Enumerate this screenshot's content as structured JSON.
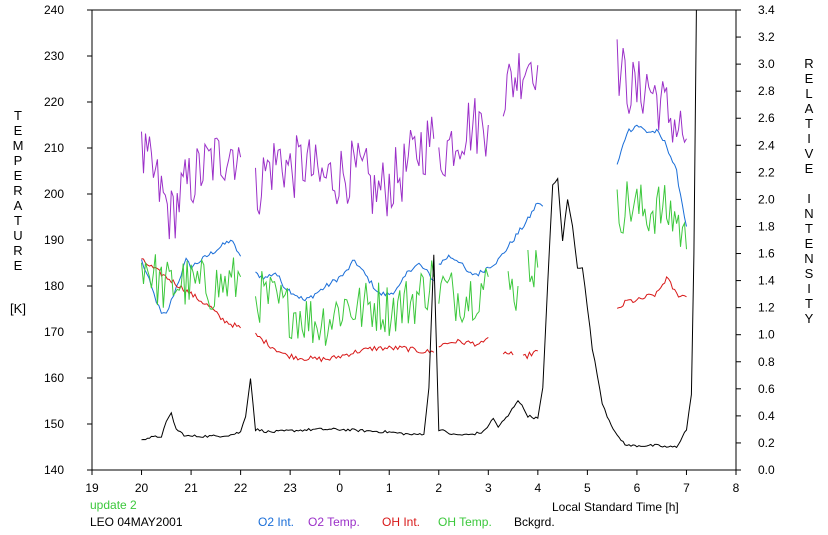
{
  "chart_data": {
    "type": "line",
    "title": "",
    "xlabel": "Local Standard Time [h]",
    "ylabel_left": "TEMPERATURE",
    "ylabel_left_unit": "[K]",
    "ylabel_right": "RELATIVE INTENSITY",
    "xlim": [
      19,
      8
    ],
    "x_ticks": [
      "19",
      "20",
      "21",
      "22",
      "23",
      "0",
      "1",
      "2",
      "3",
      "4",
      "5",
      "6",
      "7",
      "8"
    ],
    "ylim_left": [
      140,
      240
    ],
    "y_ticks_left": [
      "140",
      "150",
      "160",
      "170",
      "180",
      "190",
      "200",
      "210",
      "220",
      "230",
      "240"
    ],
    "ylim_right": [
      0.0,
      3.4
    ],
    "y_ticks_right": [
      "0.0",
      "0.2",
      "0.4",
      "0.6",
      "0.8",
      "1.0",
      "1.2",
      "1.4",
      "1.6",
      "1.8",
      "2.0",
      "2.2",
      "2.4",
      "2.6",
      "2.8",
      "3.0",
      "3.2",
      "3.4"
    ],
    "grid": false,
    "legend_position": "bottom",
    "update_note": "update 2",
    "station_label": "LEO 04MAY2001",
    "series": [
      {
        "name": "O2 Int.",
        "color": "#1a6ed8",
        "axis": "right",
        "segments": [
          [
            [
              20.0,
              1.55
            ],
            [
              20.1,
              1.45
            ],
            [
              20.2,
              1.35
            ],
            [
              20.3,
              1.25
            ],
            [
              20.4,
              1.15
            ],
            [
              20.5,
              1.15
            ],
            [
              20.6,
              1.25
            ],
            [
              20.7,
              1.35
            ],
            [
              20.8,
              1.45
            ],
            [
              20.9,
              1.55
            ],
            [
              21.0,
              1.5
            ],
            [
              21.2,
              1.55
            ],
            [
              21.4,
              1.6
            ],
            [
              21.6,
              1.65
            ],
            [
              21.8,
              1.7
            ],
            [
              22.0,
              1.58
            ]
          ],
          [
            [
              22.3,
              1.45
            ],
            [
              22.5,
              1.42
            ],
            [
              22.7,
              1.46
            ],
            [
              22.9,
              1.35
            ],
            [
              23.1,
              1.3
            ],
            [
              23.3,
              1.25
            ],
            [
              23.5,
              1.3
            ],
            [
              23.7,
              1.35
            ],
            [
              23.9,
              1.4
            ],
            [
              24.1,
              1.45
            ],
            [
              24.3,
              1.55
            ],
            [
              24.4,
              1.5
            ],
            [
              24.6,
              1.4
            ],
            [
              24.8,
              1.3
            ],
            [
              25.0,
              1.3
            ],
            [
              25.2,
              1.35
            ],
            [
              25.4,
              1.48
            ],
            [
              25.6,
              1.52
            ],
            [
              25.8,
              1.45
            ],
            [
              25.9,
              1.4
            ]
          ],
          [
            [
              26.0,
              1.52
            ],
            [
              26.2,
              1.58
            ],
            [
              26.4,
              1.55
            ],
            [
              26.6,
              1.45
            ],
            [
              26.8,
              1.45
            ],
            [
              27.0,
              1.5
            ]
          ],
          [
            [
              27.0,
              1.5
            ],
            [
              27.2,
              1.55
            ],
            [
              27.4,
              1.65
            ],
            [
              27.6,
              1.75
            ],
            [
              27.8,
              1.85
            ],
            [
              28.0,
              1.98
            ],
            [
              28.1,
              1.95
            ]
          ],
          [
            [
              29.6,
              2.25
            ],
            [
              29.8,
              2.5
            ],
            [
              30.0,
              2.55
            ],
            [
              30.2,
              2.5
            ],
            [
              30.4,
              2.5
            ],
            [
              30.6,
              2.4
            ],
            [
              30.8,
              2.2
            ],
            [
              31.0,
              1.8
            ]
          ]
        ]
      },
      {
        "name": "O2 Temp.",
        "color": "#9b30c8",
        "axis": "left",
        "segments": [
          [
            [
              20.0,
              208
            ],
            [
              20.2,
              205
            ],
            [
              20.4,
              200
            ],
            [
              20.6,
              195
            ],
            [
              20.8,
              200
            ],
            [
              21.0,
              203
            ],
            [
              21.2,
              205
            ],
            [
              21.4,
              207
            ],
            [
              21.6,
              208
            ],
            [
              21.8,
              210
            ],
            [
              22.0,
              208
            ]
          ],
          [
            [
              22.3,
              200
            ],
            [
              22.5,
              205
            ],
            [
              22.8,
              208
            ],
            [
              23.0,
              205
            ],
            [
              23.3,
              207
            ],
            [
              23.6,
              203
            ],
            [
              23.9,
              204
            ],
            [
              24.2,
              205
            ],
            [
              24.5,
              204
            ],
            [
              24.7,
              200
            ],
            [
              25.0,
              202
            ],
            [
              25.3,
              205
            ],
            [
              25.6,
              210
            ],
            [
              25.9,
              212
            ]
          ],
          [
            [
              26.0,
              208
            ],
            [
              26.3,
              212
            ],
            [
              26.6,
              215
            ],
            [
              26.9,
              215
            ],
            [
              27.0,
              215
            ]
          ],
          [
            [
              27.3,
              222
            ],
            [
              27.5,
              225
            ],
            [
              27.7,
              228
            ],
            [
              27.9,
              230
            ],
            [
              28.0,
              228
            ]
          ],
          [
            [
              29.6,
              228
            ],
            [
              29.8,
              224
            ],
            [
              30.0,
              222
            ],
            [
              30.2,
              224
            ],
            [
              30.4,
              221
            ],
            [
              30.6,
              218
            ],
            [
              30.8,
              215
            ],
            [
              31.0,
              212
            ]
          ]
        ]
      },
      {
        "name": "OH Int.",
        "color": "#d81818",
        "axis": "right",
        "segments": [
          [
            [
              20.0,
              1.55
            ],
            [
              20.2,
              1.5
            ],
            [
              20.4,
              1.45
            ],
            [
              20.6,
              1.4
            ],
            [
              20.8,
              1.35
            ],
            [
              21.0,
              1.3
            ],
            [
              21.2,
              1.25
            ],
            [
              21.4,
              1.2
            ],
            [
              21.6,
              1.12
            ],
            [
              21.8,
              1.08
            ],
            [
              22.0,
              1.05
            ]
          ],
          [
            [
              22.3,
              1.0
            ],
            [
              22.6,
              0.92
            ],
            [
              22.9,
              0.85
            ],
            [
              23.2,
              0.83
            ],
            [
              23.5,
              0.82
            ],
            [
              23.8,
              0.82
            ],
            [
              24.1,
              0.85
            ],
            [
              24.4,
              0.88
            ],
            [
              24.7,
              0.9
            ],
            [
              25.0,
              0.9
            ],
            [
              25.3,
              0.9
            ],
            [
              25.6,
              0.88
            ],
            [
              25.9,
              0.87
            ]
          ],
          [
            [
              26.0,
              0.92
            ],
            [
              26.3,
              0.95
            ],
            [
              26.6,
              0.94
            ],
            [
              26.9,
              0.93
            ],
            [
              27.0,
              0.98
            ]
          ],
          [
            [
              27.3,
              0.87
            ],
            [
              27.5,
              0.85
            ]
          ],
          [
            [
              27.7,
              0.83
            ],
            [
              28.0,
              0.88
            ]
          ],
          [
            [
              29.6,
              1.18
            ],
            [
              29.8,
              1.25
            ],
            [
              30.0,
              1.25
            ],
            [
              30.2,
              1.28
            ],
            [
              30.4,
              1.3
            ],
            [
              30.6,
              1.42
            ],
            [
              30.8,
              1.3
            ],
            [
              31.0,
              1.28
            ]
          ]
        ]
      },
      {
        "name": "OH Temp.",
        "color": "#3cc83c",
        "axis": "left",
        "segments": [
          [
            [
              20.0,
              186
            ],
            [
              20.2,
              183
            ],
            [
              20.4,
              180
            ],
            [
              20.6,
              180
            ],
            [
              20.8,
              181
            ],
            [
              21.0,
              180
            ],
            [
              21.3,
              180
            ],
            [
              21.6,
              180
            ],
            [
              21.9,
              181
            ],
            [
              22.0,
              182
            ]
          ],
          [
            [
              22.3,
              178
            ],
            [
              22.6,
              177
            ],
            [
              22.9,
              175
            ],
            [
              23.2,
              174
            ],
            [
              23.5,
              172
            ],
            [
              23.8,
              173
            ],
            [
              24.1,
              176
            ],
            [
              24.4,
              175
            ],
            [
              24.7,
              176
            ],
            [
              25.0,
              175
            ],
            [
              25.3,
              176
            ],
            [
              25.6,
              178
            ],
            [
              25.9,
              182
            ]
          ],
          [
            [
              26.0,
              180
            ],
            [
              26.3,
              178
            ],
            [
              26.6,
              178
            ],
            [
              26.9,
              180
            ],
            [
              27.0,
              182
            ]
          ],
          [
            [
              27.4,
              179
            ],
            [
              27.6,
              180
            ]
          ],
          [
            [
              27.8,
              185
            ],
            [
              28.0,
              184
            ]
          ],
          [
            [
              29.6,
              196
            ],
            [
              29.8,
              198
            ],
            [
              30.0,
              197
            ],
            [
              30.2,
              196
            ],
            [
              30.4,
              197
            ],
            [
              30.6,
              196
            ],
            [
              30.8,
              195
            ],
            [
              31.0,
              188
            ]
          ]
        ]
      },
      {
        "name": "Bckgrd.",
        "color": "#000000",
        "axis": "right",
        "segments": [
          [
            [
              20.0,
              0.23
            ],
            [
              20.2,
              0.24
            ],
            [
              20.4,
              0.25
            ],
            [
              20.5,
              0.35
            ],
            [
              20.6,
              0.42
            ],
            [
              20.7,
              0.3
            ],
            [
              20.9,
              0.25
            ],
            [
              21.2,
              0.25
            ],
            [
              21.5,
              0.25
            ],
            [
              21.8,
              0.26
            ],
            [
              22.0,
              0.28
            ],
            [
              22.1,
              0.4
            ],
            [
              22.2,
              0.68
            ],
            [
              22.3,
              0.3
            ],
            [
              22.6,
              0.28
            ],
            [
              23.0,
              0.29
            ],
            [
              23.5,
              0.3
            ],
            [
              24.0,
              0.3
            ],
            [
              24.5,
              0.29
            ],
            [
              25.0,
              0.28
            ],
            [
              25.5,
              0.26
            ],
            [
              25.7,
              0.27
            ],
            [
              25.8,
              0.6
            ],
            [
              25.9,
              1.6
            ],
            [
              26.0,
              0.3
            ],
            [
              26.3,
              0.26
            ],
            [
              26.6,
              0.26
            ],
            [
              26.9,
              0.28
            ],
            [
              27.1,
              0.38
            ],
            [
              27.2,
              0.32
            ],
            [
              27.4,
              0.4
            ],
            [
              27.6,
              0.52
            ],
            [
              27.8,
              0.4
            ],
            [
              28.0,
              0.38
            ],
            [
              28.1,
              0.6
            ],
            [
              28.2,
              1.4
            ],
            [
              28.3,
              2.1
            ],
            [
              28.4,
              2.15
            ],
            [
              28.5,
              1.7
            ],
            [
              28.6,
              2.0
            ],
            [
              28.7,
              1.8
            ],
            [
              28.8,
              1.5
            ],
            [
              28.9,
              1.5
            ],
            [
              29.0,
              1.2
            ],
            [
              29.1,
              0.9
            ],
            [
              29.2,
              0.7
            ],
            [
              29.3,
              0.5
            ],
            [
              29.4,
              0.4
            ],
            [
              29.6,
              0.25
            ],
            [
              29.8,
              0.18
            ],
            [
              30.0,
              0.18
            ],
            [
              30.2,
              0.18
            ],
            [
              30.4,
              0.18
            ],
            [
              30.6,
              0.17
            ],
            [
              30.8,
              0.17
            ],
            [
              31.0,
              0.3
            ],
            [
              31.1,
              0.55
            ],
            [
              31.15,
              1.6
            ],
            [
              31.2,
              3.4
            ]
          ]
        ]
      }
    ]
  }
}
